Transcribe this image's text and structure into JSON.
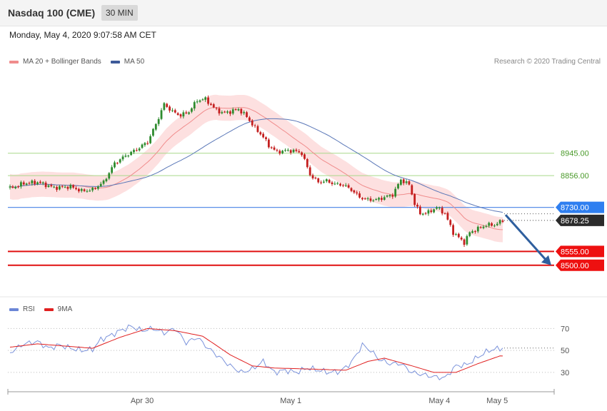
{
  "header": {
    "title": "Nasdaq 100 (CME)",
    "timeframe": "30 MIN"
  },
  "date_line": "Monday, May 4, 2020 9:07:58 AM CET",
  "legend_main": [
    {
      "label": "MA 20 + Bollinger Bands",
      "color": "#f08c8c"
    },
    {
      "label": "MA 50",
      "color": "#3d5a99"
    }
  ],
  "research": "Research © 2020 Trading Central",
  "legend_rsi": [
    {
      "label": "RSI",
      "color": "#6b86d6"
    },
    {
      "label": "9MA",
      "color": "#e02020"
    }
  ],
  "colors": {
    "up": "#2e8b2e",
    "down": "#c41e1e",
    "band_fill": "#fde0e0",
    "ma20": "#f08c8c",
    "ma50": "#5b78b8",
    "support": "#e01010",
    "pivot": "#5b8fe8",
    "resistance": "#a8d98a",
    "arrow": "#2f5f9e"
  },
  "chart_data": [
    {
      "type": "candlestick",
      "title": "Nasdaq 100 (CME) 30 MIN",
      "x_tick_labels": [
        "Apr 30",
        "May 1",
        "May 4",
        "May 5"
      ],
      "y_range": [
        8420,
        9270
      ],
      "levels": [
        {
          "value": 8945.0,
          "label": "8945.00",
          "kind": "resistance"
        },
        {
          "value": 8856.0,
          "label": "8856.00",
          "kind": "resistance"
        },
        {
          "value": 8730.0,
          "label": "8730.00",
          "kind": "pivot"
        },
        {
          "value": 8678.25,
          "label": "8678.25",
          "kind": "last"
        },
        {
          "value": 8555.0,
          "label": "8555.00",
          "kind": "support"
        },
        {
          "value": 8500.0,
          "label": "8500.00",
          "kind": "support"
        }
      ],
      "forecast_arrow": {
        "from": 8700,
        "to": 8500
      },
      "close_anchors": [
        [
          0,
          8805
        ],
        [
          5,
          8825
        ],
        [
          10,
          8830
        ],
        [
          16,
          8808
        ],
        [
          22,
          8812
        ],
        [
          26,
          8795
        ],
        [
          30,
          8800
        ],
        [
          34,
          8830
        ],
        [
          38,
          8905
        ],
        [
          42,
          8935
        ],
        [
          46,
          8960
        ],
        [
          50,
          8990
        ],
        [
          53,
          9060
        ],
        [
          56,
          9140
        ],
        [
          59,
          9110
        ],
        [
          62,
          9095
        ],
        [
          65,
          9110
        ],
        [
          68,
          9155
        ],
        [
          71,
          9160
        ],
        [
          74,
          9125
        ],
        [
          77,
          9105
        ],
        [
          80,
          9110
        ],
        [
          83,
          9120
        ],
        [
          86,
          9090
        ],
        [
          89,
          9045
        ],
        [
          92,
          9010
        ],
        [
          94,
          8975
        ],
        [
          97,
          8950
        ],
        [
          100,
          8955
        ],
        [
          103,
          8955
        ],
        [
          106,
          8945
        ],
        [
          109,
          8860
        ],
        [
          112,
          8830
        ],
        [
          115,
          8835
        ],
        [
          118,
          8822
        ],
        [
          121,
          8820
        ],
        [
          124,
          8800
        ],
        [
          127,
          8770
        ],
        [
          130,
          8760
        ],
        [
          133,
          8760
        ],
        [
          136,
          8770
        ],
        [
          139,
          8780
        ],
        [
          142,
          8840
        ],
        [
          145,
          8820
        ],
        [
          147,
          8745
        ],
        [
          149,
          8705
        ],
        [
          152,
          8710
        ],
        [
          155,
          8730
        ],
        [
          158,
          8705
        ],
        [
          161,
          8630
        ],
        [
          163,
          8610
        ],
        [
          165,
          8590
        ],
        [
          167,
          8630
        ],
        [
          170,
          8645
        ],
        [
          173,
          8660
        ],
        [
          176,
          8660
        ],
        [
          179,
          8678
        ]
      ],
      "bollinger_width": 50,
      "rsi": {
        "y_range": [
          15,
          80
        ],
        "ticks": [
          70,
          50,
          30
        ],
        "rsi_anchors": [
          [
            0,
            48
          ],
          [
            5,
            56
          ],
          [
            10,
            58
          ],
          [
            14,
            52
          ],
          [
            18,
            55
          ],
          [
            22,
            52
          ],
          [
            26,
            50
          ],
          [
            30,
            51
          ],
          [
            33,
            60
          ],
          [
            36,
            63
          ],
          [
            40,
            68
          ],
          [
            44,
            72
          ],
          [
            48,
            68
          ],
          [
            52,
            70
          ],
          [
            56,
            66
          ],
          [
            60,
            70
          ],
          [
            64,
            57
          ],
          [
            68,
            62
          ],
          [
            72,
            52
          ],
          [
            76,
            44
          ],
          [
            80,
            36
          ],
          [
            84,
            30
          ],
          [
            88,
            33
          ],
          [
            92,
            40
          ],
          [
            96,
            30
          ],
          [
            100,
            32
          ],
          [
            104,
            30
          ],
          [
            108,
            34
          ],
          [
            112,
            32
          ],
          [
            116,
            30
          ],
          [
            120,
            31
          ],
          [
            124,
            39
          ],
          [
            128,
            55
          ],
          [
            131,
            50
          ],
          [
            134,
            42
          ],
          [
            138,
            38
          ],
          [
            142,
            38
          ],
          [
            146,
            30
          ],
          [
            150,
            28
          ],
          [
            154,
            26
          ],
          [
            158,
            25
          ],
          [
            162,
            36
          ],
          [
            166,
            37
          ],
          [
            170,
            44
          ],
          [
            174,
            50
          ],
          [
            178,
            52
          ]
        ],
        "ma_anchors": [
          [
            0,
            53
          ],
          [
            10,
            56
          ],
          [
            20,
            54
          ],
          [
            30,
            52
          ],
          [
            40,
            62
          ],
          [
            50,
            70
          ],
          [
            60,
            68
          ],
          [
            70,
            63
          ],
          [
            80,
            46
          ],
          [
            88,
            36
          ],
          [
            96,
            34
          ],
          [
            110,
            33
          ],
          [
            122,
            32
          ],
          [
            130,
            40
          ],
          [
            136,
            43
          ],
          [
            146,
            36
          ],
          [
            154,
            30
          ],
          [
            162,
            30
          ],
          [
            170,
            38
          ],
          [
            178,
            45
          ]
        ]
      }
    }
  ]
}
